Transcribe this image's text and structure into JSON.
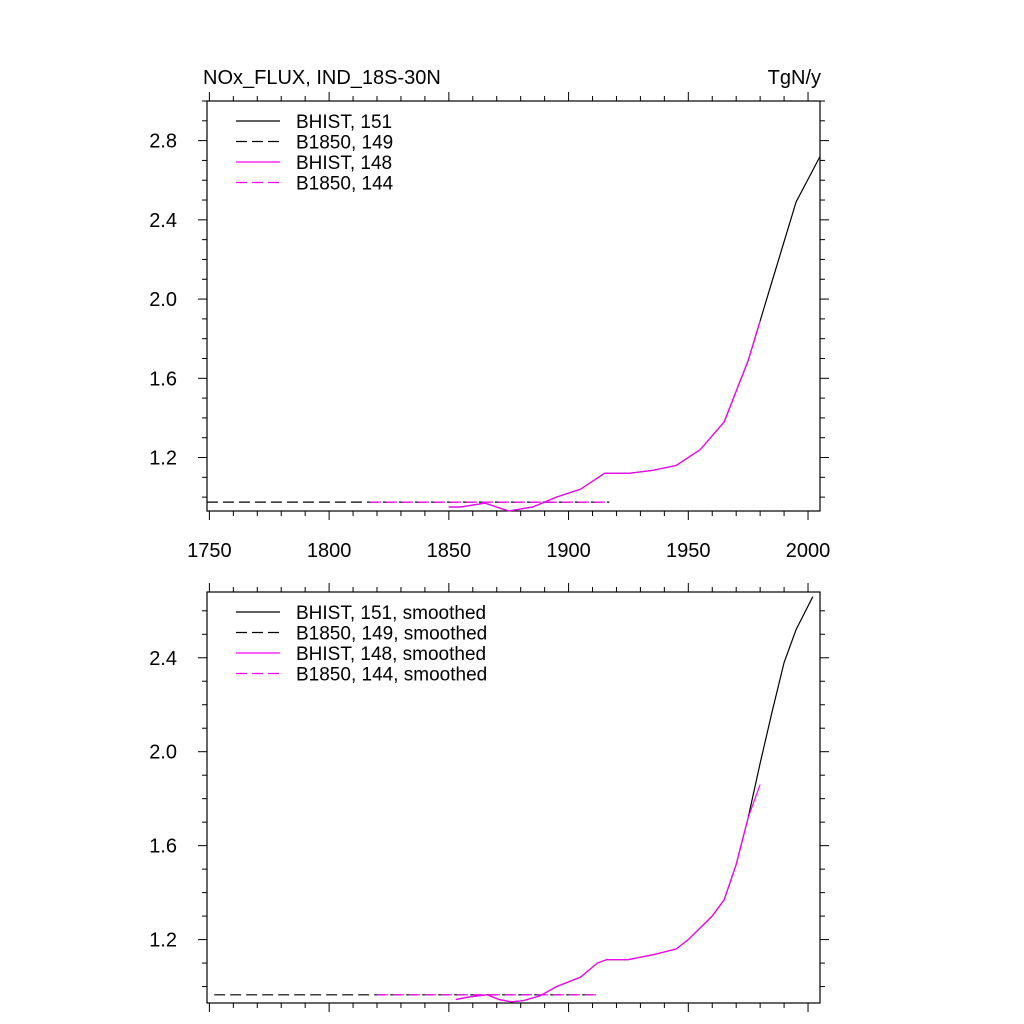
{
  "header": {
    "title_left": "NOx_FLUX, IND_18S-30N",
    "title_right": "TgN/y"
  },
  "colors": {
    "black": "#000000",
    "magenta": "#ff00ff"
  },
  "chart_data": [
    {
      "type": "line",
      "x_ticks": [
        1750,
        1800,
        1850,
        1900,
        1950,
        2000
      ],
      "xlim": [
        1749,
        2005
      ],
      "ylim": [
        0.93,
        3.0
      ],
      "y_ticks": [
        1.2,
        1.6,
        2.0,
        2.4,
        2.8
      ],
      "y_tick_labels": [
        "1.2",
        "1.6",
        "2.0",
        "2.4",
        "2.8"
      ],
      "x_tick_labels": [
        "1750",
        "1800",
        "1850",
        "1900",
        "1950",
        "2000"
      ],
      "series": [
        {
          "name": "BHIST, 151",
          "color": "#000000",
          "style": "solid",
          "x": [
            1850,
            1855,
            1865,
            1875,
            1885,
            1895,
            1905,
            1915,
            1925,
            1935,
            1945,
            1955,
            1965,
            1975,
            1985,
            1995,
            2005
          ],
          "values": [
            0.95,
            0.95,
            0.97,
            0.93,
            0.95,
            1.0,
            1.04,
            1.12,
            1.12,
            1.135,
            1.16,
            1.24,
            1.38,
            1.69,
            2.09,
            2.49,
            2.72
          ]
        },
        {
          "name": "B1850, 149",
          "color": "#000000",
          "style": "dashed",
          "x": [
            1749,
            1917
          ],
          "values": [
            0.975,
            0.975
          ]
        },
        {
          "name": "BHIST, 148",
          "color": "#ff00ff",
          "style": "solid",
          "x": [
            1850,
            1855,
            1865,
            1875,
            1885,
            1895,
            1905,
            1915,
            1925,
            1935,
            1945,
            1955,
            1965,
            1975,
            1980
          ],
          "values": [
            0.95,
            0.95,
            0.97,
            0.93,
            0.95,
            1.0,
            1.04,
            1.12,
            1.12,
            1.135,
            1.16,
            1.24,
            1.38,
            1.69,
            1.89
          ]
        },
        {
          "name": "B1850, 144",
          "color": "#ff00ff",
          "style": "dashed",
          "x": [
            1817,
            1917
          ],
          "values": [
            0.975,
            0.975
          ]
        }
      ]
    },
    {
      "type": "line",
      "x_ticks": [
        1750,
        1800,
        1850,
        1900,
        1950,
        2000
      ],
      "xlim": [
        1749,
        2005
      ],
      "ylim": [
        0.93,
        2.68
      ],
      "y_ticks": [
        1.2,
        1.6,
        2.0,
        2.4
      ],
      "y_tick_labels": [
        "1.2",
        "1.6",
        "2.0",
        "2.4"
      ],
      "x_tick_labels": [],
      "series": [
        {
          "name": "BHIST, 151, smoothed",
          "color": "#000000",
          "style": "solid",
          "x": [
            1853,
            1858,
            1866,
            1871,
            1876,
            1881,
            1888,
            1895,
            1905,
            1912,
            1916,
            1925,
            1935,
            1945,
            1950,
            1955,
            1960,
            1965,
            1970,
            1975,
            1980,
            1985,
            1990,
            1995,
            2000,
            2002
          ],
          "values": [
            0.945,
            0.955,
            0.965,
            0.945,
            0.935,
            0.94,
            0.96,
            1.0,
            1.04,
            1.1,
            1.115,
            1.115,
            1.135,
            1.16,
            1.2,
            1.25,
            1.3,
            1.37,
            1.52,
            1.72,
            1.95,
            2.17,
            2.38,
            2.52,
            2.62,
            2.66
          ]
        },
        {
          "name": "B1850, 149, smoothed",
          "color": "#000000",
          "style": "dashed",
          "x": [
            1752,
            1912
          ],
          "values": [
            0.965,
            0.965
          ]
        },
        {
          "name": "BHIST, 148, smoothed",
          "color": "#ff00ff",
          "style": "solid",
          "x": [
            1853,
            1858,
            1866,
            1871,
            1876,
            1881,
            1888,
            1895,
            1905,
            1912,
            1916,
            1925,
            1935,
            1945,
            1950,
            1955,
            1960,
            1965,
            1970,
            1975,
            1980
          ],
          "values": [
            0.945,
            0.955,
            0.965,
            0.945,
            0.935,
            0.94,
            0.96,
            1.0,
            1.04,
            1.1,
            1.115,
            1.115,
            1.135,
            1.16,
            1.2,
            1.25,
            1.3,
            1.37,
            1.52,
            1.72,
            1.86
          ]
        },
        {
          "name": "B1850, 144, smoothed",
          "color": "#ff00ff",
          "style": "dashed",
          "x": [
            1820,
            1912
          ],
          "values": [
            0.965,
            0.965
          ]
        }
      ]
    }
  ]
}
